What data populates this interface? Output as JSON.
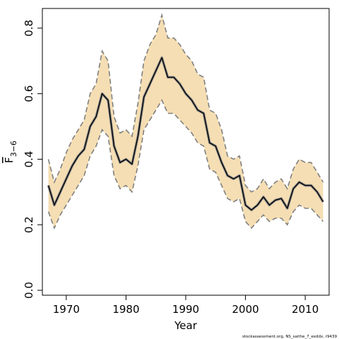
{
  "chart_data": {
    "type": "line",
    "xlabel": "Year",
    "ylabel": "F",
    "ylabel_subscript": "3−6",
    "xlim": [
      1966,
      2014
    ],
    "ylim": [
      -0.015,
      0.86
    ],
    "xticks": [
      1970,
      1980,
      1990,
      2000,
      2010
    ],
    "yticks": [
      0.0,
      0.2,
      0.4,
      0.6,
      0.8
    ],
    "ytick_labels": [
      "0.0",
      "0.2",
      "0.4",
      "0.6",
      "0.8"
    ],
    "grid": false,
    "colors": {
      "band": "#f5deb3",
      "band_edge": "#808080",
      "line": "#000000"
    },
    "x": [
      1967,
      1968,
      1969,
      1970,
      1971,
      1972,
      1973,
      1974,
      1975,
      1976,
      1977,
      1978,
      1979,
      1980,
      1981,
      1982,
      1983,
      1984,
      1985,
      1986,
      1987,
      1988,
      1989,
      1990,
      1991,
      1992,
      1993,
      1994,
      1995,
      1996,
      1997,
      1998,
      1999,
      2000,
      2001,
      2002,
      2003,
      2004,
      2005,
      2006,
      2007,
      2008,
      2009,
      2010,
      2011,
      2012,
      2013
    ],
    "series": [
      {
        "role": "estimate",
        "values": [
          0.32,
          0.26,
          0.3,
          0.34,
          0.38,
          0.41,
          0.43,
          0.5,
          0.53,
          0.6,
          0.58,
          0.44,
          0.39,
          0.4,
          0.385,
          0.47,
          0.59,
          0.63,
          0.67,
          0.71,
          0.65,
          0.65,
          0.63,
          0.6,
          0.58,
          0.55,
          0.54,
          0.45,
          0.44,
          0.39,
          0.35,
          0.34,
          0.35,
          0.26,
          0.245,
          0.26,
          0.285,
          0.26,
          0.275,
          0.28,
          0.25,
          0.31,
          0.33,
          0.32,
          0.32,
          0.3,
          0.27
        ]
      },
      {
        "role": "upper",
        "values": [
          0.4,
          0.33,
          0.37,
          0.42,
          0.46,
          0.49,
          0.52,
          0.6,
          0.63,
          0.73,
          0.7,
          0.53,
          0.48,
          0.49,
          0.47,
          0.57,
          0.7,
          0.75,
          0.78,
          0.84,
          0.77,
          0.77,
          0.75,
          0.72,
          0.7,
          0.66,
          0.65,
          0.55,
          0.54,
          0.49,
          0.41,
          0.4,
          0.41,
          0.32,
          0.3,
          0.31,
          0.34,
          0.31,
          0.33,
          0.34,
          0.31,
          0.37,
          0.4,
          0.39,
          0.39,
          0.36,
          0.33
        ]
      },
      {
        "role": "lower",
        "values": [
          0.24,
          0.19,
          0.23,
          0.26,
          0.29,
          0.32,
          0.35,
          0.41,
          0.44,
          0.49,
          0.47,
          0.35,
          0.31,
          0.32,
          0.3,
          0.38,
          0.49,
          0.52,
          0.55,
          0.58,
          0.54,
          0.54,
          0.52,
          0.5,
          0.48,
          0.45,
          0.44,
          0.37,
          0.36,
          0.32,
          0.28,
          0.27,
          0.28,
          0.21,
          0.19,
          0.21,
          0.23,
          0.21,
          0.22,
          0.22,
          0.2,
          0.24,
          0.26,
          0.25,
          0.25,
          0.23,
          0.21
        ]
      }
    ]
  },
  "footnote": "stockassessment.org, NS_saithe_7_exddx, r9439"
}
